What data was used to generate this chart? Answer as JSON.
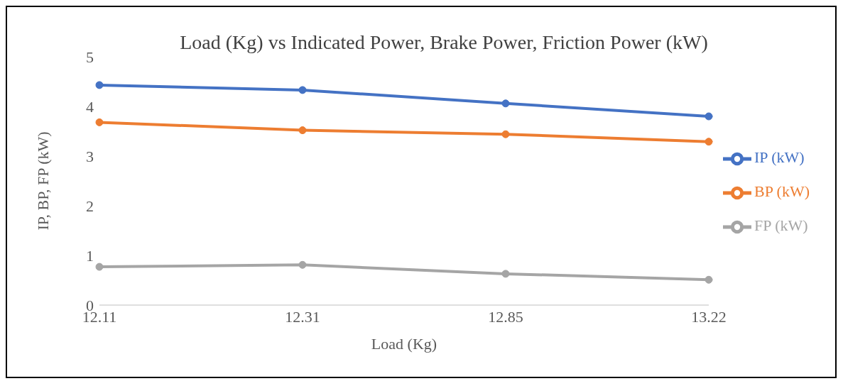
{
  "chart_data": {
    "type": "line",
    "title": "Load (Kg) vs Indicated Power, Brake Power, Friction Power (kW)",
    "xlabel": "Load (Kg)",
    "ylabel": "IP, BP, FP (kW)",
    "categories": [
      "12.11",
      "12.31",
      "12.85",
      "13.22"
    ],
    "series": [
      {
        "name": "IP (kW)",
        "color": "#4472c4",
        "values": [
          4.43,
          4.33,
          4.06,
          3.8
        ]
      },
      {
        "name": "BP (kW)",
        "color": "#ed7d31",
        "values": [
          3.68,
          3.52,
          3.44,
          3.29
        ]
      },
      {
        "name": "FP (kW)",
        "color": "#a5a5a5",
        "values": [
          0.77,
          0.81,
          0.63,
          0.51
        ]
      }
    ],
    "ylim": [
      0,
      5
    ],
    "yticks": [
      0,
      1,
      2,
      3,
      4,
      5
    ],
    "grid": false,
    "legend": "right",
    "marker": "circle",
    "line_style": "solid"
  }
}
